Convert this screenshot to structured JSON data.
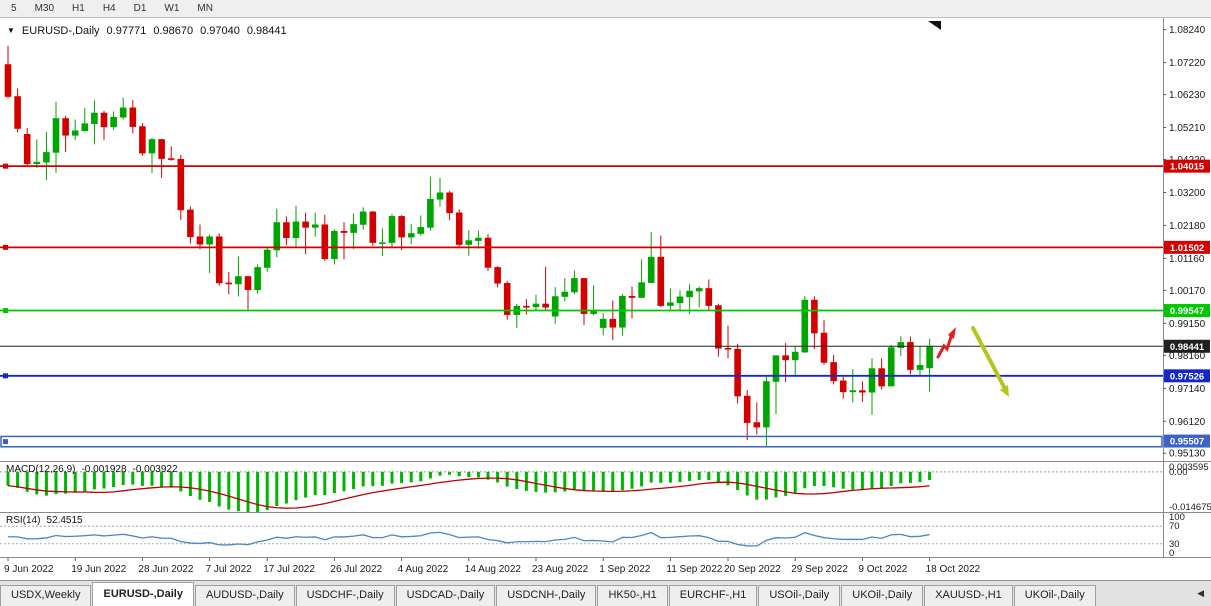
{
  "toolbar": {
    "timeframes": [
      "5",
      "M30",
      "H1",
      "H4",
      "D1",
      "W1",
      "MN"
    ]
  },
  "chart": {
    "marker": "▼",
    "symbol_title": "EURUSD-,Daily",
    "open": "0.97771",
    "high": "0.98670",
    "low": "0.97040",
    "close": "0.98441"
  },
  "chart_data": {
    "type": "candlestick",
    "title": "EURUSD-,Daily",
    "grid": false,
    "ylim": [
      0.9489,
      1.086
    ],
    "y_ticks": [
      "1.08240",
      "1.07220",
      "1.06230",
      "1.05210",
      "1.04220",
      "1.03200",
      "1.02180",
      "1.01160",
      "1.00170",
      "0.99150",
      "0.98160",
      "0.97140",
      "0.96120",
      "0.95130"
    ],
    "x_ticks": [
      "9 Jun 2022",
      "19 Jun 2022",
      "28 Jun 2022",
      "7 Jul 2022",
      "17 Jul 2022",
      "26 Jul 2022",
      "4 Aug 2022",
      "14 Aug 2022",
      "23 Aug 2022",
      "1 Sep 2022",
      "11 Sep 2022",
      "20 Sep 2022",
      "29 Sep 2022",
      "9 Oct 2022",
      "18 Oct 2022"
    ],
    "levels": [
      {
        "price": 1.04015,
        "label": "1.04015",
        "color": "#D40000",
        "style": "line"
      },
      {
        "price": 1.01502,
        "label": "1.01502",
        "color": "#D40000",
        "style": "line"
      },
      {
        "price": 0.99547,
        "label": "0.99547",
        "color": "#00C800",
        "style": "line"
      },
      {
        "price": 0.97526,
        "label": "0.97526",
        "color": "#1428C8",
        "style": "line"
      },
      {
        "price": 0.95507,
        "label": "0.95507",
        "color": "#3C64C8",
        "style": "band",
        "band_top": 0.9565,
        "band_bottom": 0.9533
      }
    ],
    "current_price": {
      "price": 0.98441,
      "label": "0.98441",
      "color": "#202020"
    },
    "candle_colors": {
      "bull": "#00A600",
      "bear": "#D40000"
    },
    "candles": [
      [
        1.0716,
        1.0774,
        1.0611,
        1.0617
      ],
      [
        1.0617,
        1.0642,
        1.0506,
        1.0518
      ],
      [
        1.05,
        1.052,
        1.0399,
        1.0409
      ],
      [
        1.0409,
        1.0484,
        1.0396,
        1.0414
      ],
      [
        1.0414,
        1.0507,
        1.0359,
        1.0444
      ],
      [
        1.0444,
        1.0601,
        1.0381,
        1.0549
      ],
      [
        1.0549,
        1.0557,
        1.0445,
        1.0497
      ],
      [
        1.0497,
        1.0546,
        1.0482,
        1.0511
      ],
      [
        1.0511,
        1.0582,
        1.0508,
        1.0533
      ],
      [
        1.0533,
        1.0605,
        1.0469,
        1.0566
      ],
      [
        1.0566,
        1.0573,
        1.0483,
        1.0523
      ],
      [
        1.0523,
        1.0571,
        1.0513,
        1.0553
      ],
      [
        1.0553,
        1.0614,
        1.0546,
        1.0582
      ],
      [
        1.0582,
        1.0606,
        1.0503,
        1.0524
      ],
      [
        1.0524,
        1.0535,
        1.0434,
        1.0442
      ],
      [
        1.0442,
        1.0489,
        1.038,
        1.0484
      ],
      [
        1.0484,
        1.0486,
        1.0365,
        1.0425
      ],
      [
        1.0425,
        1.0463,
        1.0418,
        1.0423
      ],
      [
        1.0423,
        1.0436,
        1.0235,
        1.0266
      ],
      [
        1.0266,
        1.0276,
        1.0162,
        1.0183
      ],
      [
        1.0183,
        1.0221,
        1.0144,
        1.016
      ],
      [
        1.016,
        1.019,
        1.0071,
        1.0183
      ],
      [
        1.0183,
        1.0193,
        1.0032,
        1.004
      ],
      [
        1.004,
        1.0074,
        1.0005,
        1.0037
      ],
      [
        1.0037,
        1.0122,
        0.9998,
        1.006
      ],
      [
        1.006,
        1.0062,
        0.9952,
        1.0019
      ],
      [
        1.0019,
        1.0098,
        1.0007,
        1.0088
      ],
      [
        1.0088,
        1.0149,
        1.0075,
        1.0142
      ],
      [
        1.0142,
        1.027,
        1.012,
        1.0227
      ],
      [
        1.0227,
        1.0246,
        1.0157,
        1.018
      ],
      [
        1.018,
        1.0279,
        1.0152,
        1.0229
      ],
      [
        1.0229,
        1.0257,
        1.0129,
        1.0212
      ],
      [
        1.0212,
        1.0258,
        1.0183,
        1.022
      ],
      [
        1.022,
        1.0251,
        1.0108,
        1.0115
      ],
      [
        1.0115,
        1.0206,
        1.0097,
        1.02
      ],
      [
        1.02,
        1.0228,
        1.0113,
        1.0196
      ],
      [
        1.0196,
        1.0255,
        1.0145,
        1.0221
      ],
      [
        1.0221,
        1.0274,
        1.0205,
        1.026
      ],
      [
        1.026,
        1.0263,
        1.0155,
        1.0165
      ],
      [
        1.0165,
        1.0209,
        1.0123,
        1.0165
      ],
      [
        1.0165,
        1.0254,
        1.0151,
        1.0246
      ],
      [
        1.0246,
        1.025,
        1.0141,
        1.0182
      ],
      [
        1.0182,
        1.0222,
        1.016,
        1.0193
      ],
      [
        1.0193,
        1.0249,
        1.0186,
        1.0212
      ],
      [
        1.0212,
        1.0369,
        1.0202,
        1.0299
      ],
      [
        1.0299,
        1.0365,
        1.0276,
        1.0319
      ],
      [
        1.0319,
        1.0325,
        1.0234,
        1.0257
      ],
      [
        1.0257,
        1.0268,
        1.0152,
        1.0159
      ],
      [
        1.0159,
        1.0203,
        1.0124,
        1.0171
      ],
      [
        1.0171,
        1.0202,
        1.0146,
        1.0179
      ],
      [
        1.0179,
        1.0191,
        1.0077,
        1.0088
      ],
      [
        1.0088,
        1.0092,
        1.0026,
        1.0039
      ],
      [
        1.0039,
        1.0046,
        0.9926,
        0.9942
      ],
      [
        0.9942,
        0.9975,
        0.99,
        0.9968
      ],
      [
        0.9968,
        0.999,
        0.9942,
        0.9966
      ],
      [
        0.9966,
        1.0003,
        0.9956,
        0.9975
      ],
      [
        0.9975,
        1.009,
        0.9954,
        0.9965
      ],
      [
        0.9937,
        1.0027,
        0.9914,
        0.9998
      ],
      [
        0.9998,
        1.0055,
        0.9983,
        1.0012
      ],
      [
        1.0012,
        1.0079,
        1.0005,
        1.0054
      ],
      [
        1.0054,
        1.0055,
        0.991,
        0.9945
      ],
      [
        0.9945,
        1.0033,
        0.9939,
        0.9952
      ],
      [
        0.9902,
        0.9946,
        0.9878,
        0.9928
      ],
      [
        0.9928,
        0.9986,
        0.9863,
        0.9903
      ],
      [
        0.9903,
        1.0006,
        0.9877,
        0.9999
      ],
      [
        0.9999,
        1.0029,
        0.993,
        0.9995
      ],
      [
        0.9995,
        1.0113,
        0.9993,
        1.0041
      ],
      [
        1.0041,
        1.0198,
        1.004,
        1.012
      ],
      [
        1.012,
        1.0187,
        0.9965,
        0.997
      ],
      [
        0.997,
        1.0023,
        0.9955,
        0.9979
      ],
      [
        0.9979,
        1.0017,
        0.9954,
        0.9997
      ],
      [
        0.9997,
        1.0036,
        0.9943,
        1.0015
      ],
      [
        1.0015,
        1.0029,
        0.9964,
        1.0023
      ],
      [
        1.0023,
        1.0051,
        0.9954,
        0.997
      ],
      [
        0.997,
        0.9976,
        0.9812,
        0.9838
      ],
      [
        0.9838,
        0.9908,
        0.9807,
        0.9835
      ],
      [
        0.9835,
        0.9852,
        0.9667,
        0.969
      ],
      [
        0.969,
        0.9709,
        0.9554,
        0.9608
      ],
      [
        0.9608,
        0.967,
        0.9571,
        0.9594
      ],
      [
        0.9594,
        0.975,
        0.9535,
        0.9735
      ],
      [
        0.9735,
        0.9816,
        0.9634,
        0.9815
      ],
      [
        0.9815,
        0.9854,
        0.9733,
        0.9802
      ],
      [
        0.9802,
        0.9844,
        0.9752,
        0.9826
      ],
      [
        0.9826,
        0.9999,
        0.9823,
        0.9987
      ],
      [
        0.9987,
        0.9999,
        0.9835,
        0.9885
      ],
      [
        0.9885,
        0.9926,
        0.9787,
        0.9794
      ],
      [
        0.9794,
        0.9817,
        0.9726,
        0.9737
      ],
      [
        0.9737,
        0.975,
        0.9682,
        0.9703
      ],
      [
        0.9703,
        0.9773,
        0.967,
        0.9707
      ],
      [
        0.9707,
        0.9736,
        0.9672,
        0.9702
      ],
      [
        0.9702,
        0.9807,
        0.9632,
        0.9775
      ],
      [
        0.9775,
        0.9807,
        0.971,
        0.9721
      ],
      [
        0.9721,
        0.9848,
        0.9721,
        0.984
      ],
      [
        0.984,
        0.9875,
        0.9814,
        0.9856
      ],
      [
        0.9856,
        0.9874,
        0.9757,
        0.9772
      ],
      [
        0.9772,
        0.9845,
        0.9755,
        0.9785
      ],
      [
        0.97771,
        0.9867,
        0.9704,
        0.98441
      ]
    ],
    "macd": {
      "name": "MACD(12,26,9)",
      "main_value": "-0.001928",
      "signal_value": "-0.003922",
      "params": [
        12,
        26,
        9
      ],
      "axis_labels": [
        "0.003595",
        "0.00",
        "-0.014675"
      ],
      "range": [
        -0.014675,
        0.003595
      ],
      "hist_color": "#00B400",
      "signal_color": "#C00000"
    },
    "rsi": {
      "name": "RSI(14)",
      "value": "52.4515",
      "period": 14,
      "axis_labels": [
        "100",
        "70",
        "30",
        "0"
      ],
      "levels": [
        70,
        30
      ],
      "line_color": "#4A86C8"
    },
    "annotations": [
      {
        "shape": "zigzag-arrow-up",
        "color": "#E02020"
      },
      {
        "shape": "arrow-down-right",
        "color": "#B4C61E"
      }
    ]
  },
  "tabs": {
    "items": [
      {
        "label": "USDX,Weekly",
        "active": false
      },
      {
        "label": "EURUSD-,Daily",
        "active": true
      },
      {
        "label": "AUDUSD-,Daily",
        "active": false
      },
      {
        "label": "USDCHF-,Daily",
        "active": false
      },
      {
        "label": "USDCAD-,Daily",
        "active": false
      },
      {
        "label": "USDCNH-,Daily",
        "active": false
      },
      {
        "label": "HK50-,H1",
        "active": false
      },
      {
        "label": "EURCHF-,H1",
        "active": false
      },
      {
        "label": "USOil-,Daily",
        "active": false
      },
      {
        "label": "UKOil-,Daily",
        "active": false
      },
      {
        "label": "XAUUSD-,H1",
        "active": false
      },
      {
        "label": "UKOil-,Daily",
        "active": false
      }
    ],
    "scroll_icon": "◀"
  }
}
